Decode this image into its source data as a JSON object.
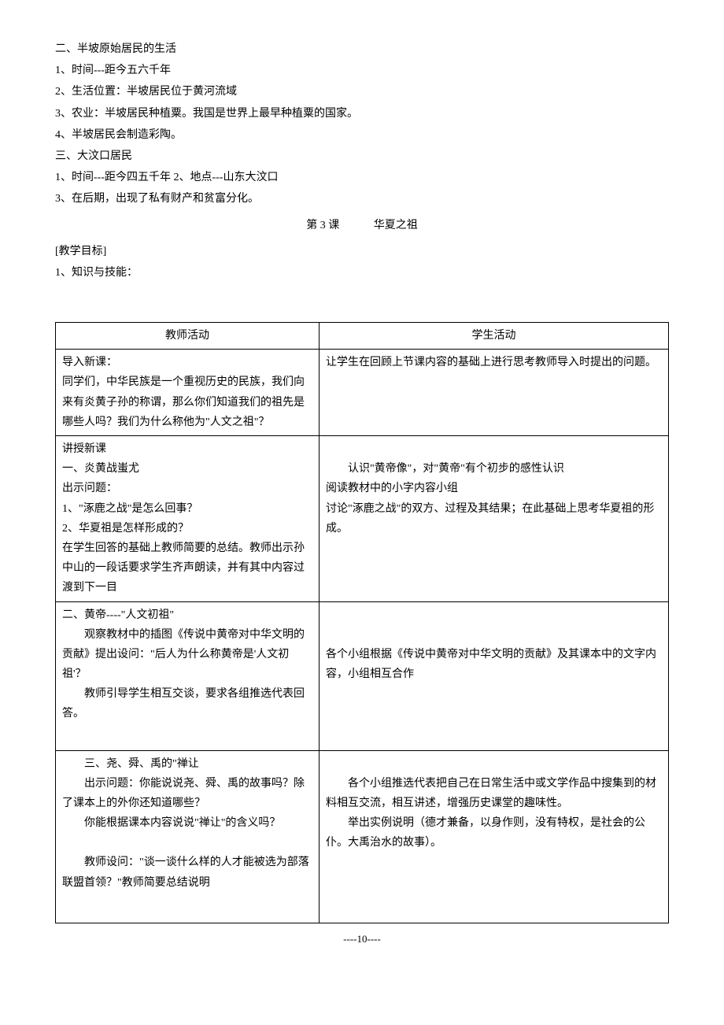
{
  "colors": {
    "text": "#000000",
    "background": "#ffffff",
    "border": "#000000"
  },
  "typography": {
    "font_family": "SimSun",
    "body_fontsize": 14,
    "line_height": 1.8
  },
  "intro": {
    "section2_title": "二、半坡原始居民的生活",
    "section2_line1": "1、时间---距今五六千年",
    "section2_line2": "2、生活位置：半坡居民位于黄河流域",
    "section2_line3": "3、农业：半坡居民种植粟。我国是世界上最早种植粟的国家。",
    "section2_line4": "4、半坡居民会制造彩陶。",
    "section3_title": "三、大汶口居民",
    "section3_line1": "1、时间---距今四五千年 2、地点---山东大汶口",
    "section3_line2": "3、在后期，出现了私有财产和贫富分化。"
  },
  "lesson": {
    "number": "第 3 课",
    "title": "华夏之祖",
    "objectives_label": "[教学目标]",
    "objective1": "1、知识与技能："
  },
  "table": {
    "header_teacher": "教师活动",
    "header_student": "学生活动",
    "rows": [
      {
        "teacher": {
          "line1": "导入新课：",
          "line2": "同学们，中华民族是一个重视历史的民族，我们向来有炎黄子孙的称谓，那么你们知道我们的祖先是哪些人吗？我们为什么称他为\"人文之祖\"？"
        },
        "student": {
          "line1": "让学生在回顾上节课内容的基础上进行思考教师导入时提出的问题。"
        }
      },
      {
        "teacher": {
          "line1": "讲授新课",
          "line2": "一、炎黄战蚩尤",
          "line3": "出示问题：",
          "line4": "1、\"涿鹿之战\"是怎么回事？",
          "line5": "2、华夏祖是怎样形成的？",
          "line6": "在学生回答的基础上教师简要的总结。教师出示孙中山的一段话要求学生齐声朗读，并有其中内容过渡到下一目"
        },
        "student": {
          "line1": "认识\"黄帝像\"，对\"黄帝\"有个初步的感性认识",
          "line2": "阅读教材中的小字内容小组",
          "line3": "讨论\"涿鹿之战\"的双方、过程及其结果；在此基础上思考华夏祖的形成。"
        }
      },
      {
        "teacher": {
          "line1": "二、黄帝----\"人文初祖\"",
          "line2": "观察教材中的插图《传说中黄帝对中华文明的贡献》提出设问：\"后人为什么称黄帝是'人文初祖'？",
          "line3": "教师引导学生相互交谈，要求各组推选代表回答。"
        },
        "student": {
          "line1": "各个小组根据《传说中黄帝对中华文明的贡献》及其课本中的文字内容，小组相互合作"
        }
      },
      {
        "teacher": {
          "line1": "三、尧、舜、禹的\"禅让",
          "line2": "出示问题：你能说说尧、舜、禹的故事吗？除了课本上的外你还知道哪些？",
          "line3": "你能根据课本内容说说\"禅让\"的含义吗？",
          "line4": "",
          "line5": "教师设问：\"谈一谈什么样的人才能被选为部落联盟首领？\"教师简要总结说明"
        },
        "student": {
          "line1": "各个小组推选代表把自己在日常生活中或文学作品中搜集到的材料相互交流，相互讲述，增强历史课堂的趣味性。",
          "line2": "举出实例说明（德才兼备，以身作则，没有特权，是社会的公仆。大禹治水的故事）。"
        }
      }
    ]
  },
  "footer": {
    "page": "----10----"
  }
}
